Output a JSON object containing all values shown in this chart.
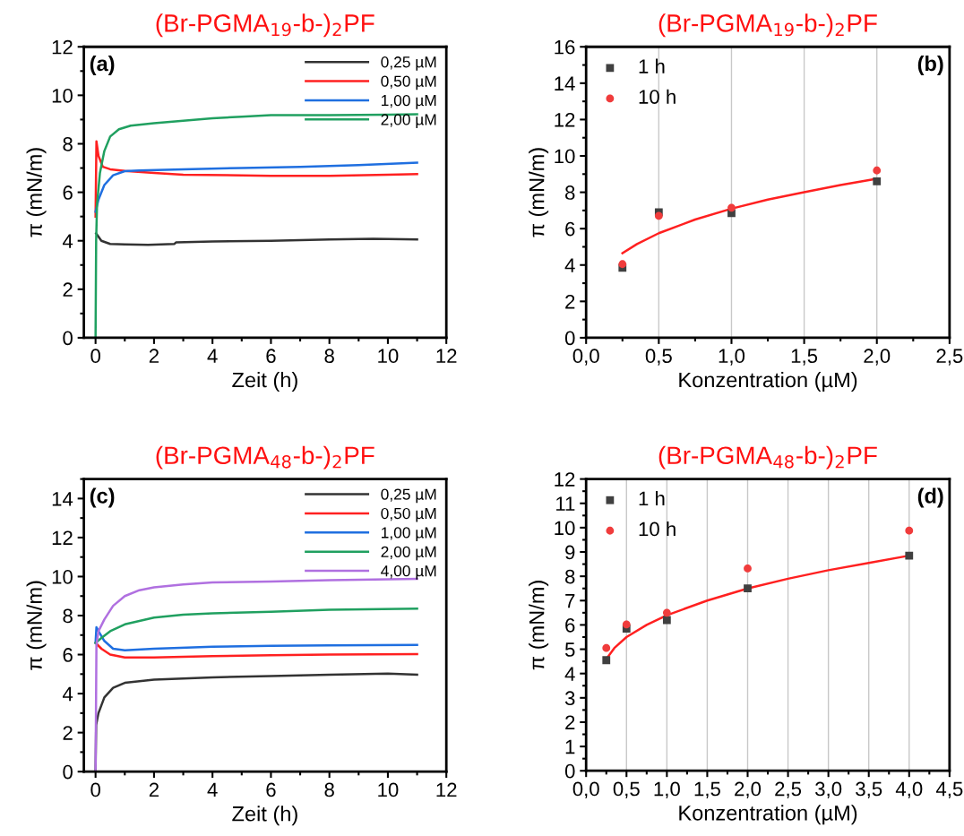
{
  "chart_data": [
    {
      "type": "line",
      "title": "(Br-PGMA$_{19}$-b-)$_{2}$PF",
      "xlabel": "Zeit (h)",
      "ylabel": "π (mN/m)",
      "annotations": [
        "(a)"
      ],
      "xlim": [
        -0.4,
        12
      ],
      "xticks": [
        0,
        2,
        4,
        6,
        8,
        10,
        12
      ],
      "ylim": [
        0,
        12
      ],
      "yticks": [
        0,
        2,
        4,
        6,
        8,
        10,
        12
      ],
      "legend": "top right",
      "grid": false,
      "series": [
        {
          "name": "0,25 µM",
          "color": "#333333",
          "x": [
            0.02,
            0.2,
            0.5,
            1,
            1.8,
            2.7,
            2.75,
            4,
            6,
            8,
            9.5,
            11
          ],
          "values": [
            4.3,
            4.0,
            3.87,
            3.85,
            3.83,
            3.87,
            3.93,
            3.97,
            4.0,
            4.05,
            4.08,
            4.05
          ]
        },
        {
          "name": "0,50 µM",
          "color": "#ff2020",
          "x": [
            0,
            0.03,
            0.1,
            0.25,
            0.5,
            1,
            2,
            3,
            5,
            6,
            8,
            10,
            11
          ],
          "values": [
            5.0,
            8.1,
            7.5,
            7.05,
            6.95,
            6.88,
            6.8,
            6.72,
            6.7,
            6.68,
            6.68,
            6.72,
            6.75
          ]
        },
        {
          "name": "1,00 µM",
          "color": "#1f6fe0",
          "x": [
            0,
            0.1,
            0.3,
            0.6,
            1,
            1.5,
            3,
            5,
            7,
            9,
            11
          ],
          "values": [
            5.2,
            5.7,
            6.3,
            6.7,
            6.87,
            6.9,
            6.95,
            7.0,
            7.05,
            7.12,
            7.22
          ]
        },
        {
          "name": "2,00 µM",
          "color": "#20a060",
          "x": [
            0,
            0.02,
            0.05,
            0.15,
            0.3,
            0.5,
            0.8,
            1.2,
            2,
            3,
            4,
            5,
            6,
            8,
            10,
            11
          ],
          "values": [
            0,
            4.0,
            5.5,
            6.8,
            7.7,
            8.3,
            8.6,
            8.75,
            8.85,
            8.95,
            9.05,
            9.12,
            9.18,
            9.18,
            9.2,
            9.22
          ]
        }
      ]
    },
    {
      "type": "scatter",
      "title": "(Br-PGMA$_{19}$-b-)$_{2}$PF",
      "xlabel": "Konzentration (µM)",
      "ylabel": "π (mN/m)",
      "annotations": [
        "(b)"
      ],
      "xlim": [
        0,
        2.5
      ],
      "xticks": [
        {
          "value": 0,
          "label": "0,0"
        },
        {
          "value": 0.5,
          "label": "0,5"
        },
        {
          "value": 1,
          "label": "1,0"
        },
        {
          "value": 1.5,
          "label": "1,5"
        },
        {
          "value": 2,
          "label": "2,0"
        },
        {
          "value": 2.5,
          "label": "2,5"
        }
      ],
      "ylim": [
        0,
        16
      ],
      "yticks": [
        0,
        2,
        4,
        6,
        8,
        10,
        12,
        14,
        16
      ],
      "legend": "top left",
      "grid": "x",
      "series": [
        {
          "name": "1 h",
          "color": "#404040",
          "marker": "square",
          "x": [
            0.25,
            0.5,
            1,
            2
          ],
          "values": [
            3.85,
            6.9,
            6.85,
            8.6
          ]
        },
        {
          "name": "10 h",
          "color": "#f03c3c",
          "marker": "circle",
          "x": [
            0.25,
            0.5,
            1,
            2
          ],
          "values": [
            4.05,
            6.7,
            7.15,
            9.2
          ]
        },
        {
          "type": "line",
          "color": "#ff2020",
          "x": [
            0.25,
            0.35,
            0.5,
            0.75,
            1.0,
            1.25,
            1.5,
            1.75,
            2.0
          ],
          "values": [
            4.65,
            5.15,
            5.75,
            6.5,
            7.1,
            7.6,
            8.0,
            8.4,
            8.75
          ]
        }
      ]
    },
    {
      "type": "line",
      "title": "(Br-PGMA$_{48}$-b-)$_{2}$PF",
      "xlabel": "Zeit (h)",
      "ylabel": "π (mN/m)",
      "annotations": [
        "(c)"
      ],
      "xlim": [
        -0.4,
        12
      ],
      "xticks": [
        0,
        2,
        4,
        6,
        8,
        10,
        12
      ],
      "ylim": [
        0,
        15
      ],
      "yticks": [
        0,
        2,
        4,
        6,
        8,
        10,
        12,
        14
      ],
      "legend": "top right",
      "grid": false,
      "series": [
        {
          "name": "0,25 µM",
          "color": "#333333",
          "x": [
            0,
            0.02,
            0.1,
            0.3,
            0.6,
            1,
            2,
            4,
            6,
            8,
            10,
            11
          ],
          "values": [
            0,
            2.4,
            3.0,
            3.8,
            4.3,
            4.55,
            4.72,
            4.83,
            4.9,
            4.97,
            5.02,
            4.97
          ]
        },
        {
          "name": "0,50 µM",
          "color": "#ff2020",
          "x": [
            0,
            0.2,
            0.5,
            1,
            2,
            4,
            6,
            8,
            11
          ],
          "values": [
            6.6,
            6.3,
            6.0,
            5.85,
            5.85,
            5.92,
            5.97,
            6.0,
            6.02
          ]
        },
        {
          "name": "1,00 µM",
          "color": "#1f6fe0",
          "x": [
            0,
            0.03,
            0.1,
            0.3,
            0.6,
            1,
            2,
            4,
            6,
            8,
            11
          ],
          "values": [
            6.6,
            7.4,
            7.2,
            6.7,
            6.3,
            6.22,
            6.3,
            6.4,
            6.45,
            6.47,
            6.5
          ]
        },
        {
          "name": "2,00 µM",
          "color": "#20a060",
          "x": [
            0,
            0.2,
            0.5,
            1,
            2,
            3,
            4,
            6,
            8,
            11
          ],
          "values": [
            6.6,
            6.85,
            7.2,
            7.55,
            7.9,
            8.05,
            8.12,
            8.2,
            8.3,
            8.35
          ]
        },
        {
          "name": "4,00 µM",
          "color": "#b070e0",
          "x": [
            0,
            0.03,
            0.1,
            0.3,
            0.6,
            1,
            1.5,
            2,
            3,
            4,
            6,
            8,
            11
          ],
          "values": [
            0,
            6.5,
            7.2,
            7.8,
            8.5,
            9.0,
            9.3,
            9.45,
            9.6,
            9.7,
            9.75,
            9.82,
            9.88
          ]
        }
      ]
    },
    {
      "type": "scatter",
      "title": "(Br-PGMA$_{48}$-b-)$_{2}$PF",
      "xlabel": "Konzentration (µM)",
      "ylabel": "π (mN/m)",
      "annotations": [
        "(d)"
      ],
      "xlim": [
        0,
        4.5
      ],
      "xticks": [
        {
          "value": 0,
          "label": "0,0"
        },
        {
          "value": 0.5,
          "label": "0,5"
        },
        {
          "value": 1,
          "label": "1,0"
        },
        {
          "value": 1.5,
          "label": "1,5"
        },
        {
          "value": 2,
          "label": "2,0"
        },
        {
          "value": 2.5,
          "label": "2,5"
        },
        {
          "value": 3,
          "label": "3,0"
        },
        {
          "value": 3.5,
          "label": "3,5"
        },
        {
          "value": 4,
          "label": "4,0"
        },
        {
          "value": 4.5,
          "label": "4,5"
        }
      ],
      "ylim": [
        0,
        12
      ],
      "yticks": [
        0,
        1,
        2,
        3,
        4,
        5,
        6,
        7,
        8,
        9,
        10,
        11,
        12
      ],
      "legend": "top left",
      "grid": "x",
      "series": [
        {
          "name": "1 h",
          "color": "#404040",
          "marker": "square",
          "x": [
            0.25,
            0.5,
            1,
            2,
            4
          ],
          "values": [
            4.55,
            5.85,
            6.2,
            7.5,
            8.85
          ]
        },
        {
          "name": "10 h",
          "color": "#f03c3c",
          "marker": "circle",
          "x": [
            0.25,
            0.5,
            1,
            2,
            4
          ],
          "values": [
            5.05,
            6.02,
            6.5,
            8.32,
            9.88
          ]
        },
        {
          "type": "line",
          "color": "#ff2020",
          "x": [
            0.25,
            0.35,
            0.5,
            0.75,
            1,
            1.5,
            2,
            2.5,
            3,
            3.5,
            4
          ],
          "values": [
            4.6,
            5.05,
            5.5,
            6.0,
            6.4,
            7.0,
            7.5,
            7.9,
            8.25,
            8.55,
            8.85
          ]
        }
      ]
    }
  ]
}
